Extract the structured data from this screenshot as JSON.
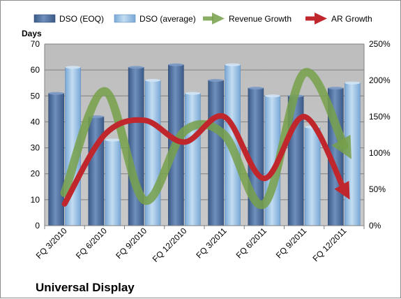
{
  "chart_data": {
    "type": "bar",
    "title": "Universal Display",
    "ylabel": "Days",
    "categories": [
      "FQ 3/2010",
      "FQ 6/2010",
      "FQ 9/2010",
      "FQ 12/2010",
      "FQ 3/2011",
      "FQ 6/2011",
      "FQ 9/2011",
      "FQ 12/2011"
    ],
    "ylim": [
      0,
      70
    ],
    "yticks": [
      0,
      10,
      20,
      30,
      40,
      50,
      60,
      70
    ],
    "y2lim": [
      0,
      250
    ],
    "y2ticks": [
      "0%",
      "50%",
      "100%",
      "150%",
      "200%",
      "250%"
    ],
    "y2values": [
      0,
      50,
      100,
      150,
      200,
      250
    ],
    "legend_position": "top",
    "plot_background": "#c0c0c0",
    "series": [
      {
        "name": "DSO (EOQ)",
        "type": "bar",
        "axis": "left",
        "color": "#4f6d9a",
        "values": [
          51,
          42,
          61,
          62,
          56,
          53,
          50,
          53
        ]
      },
      {
        "name": "DSO (average)",
        "type": "bar",
        "axis": "left",
        "color": "#9cc3e6",
        "values": [
          61,
          33,
          56,
          51,
          62,
          50,
          38,
          55
        ]
      },
      {
        "name": "Revenue Growth",
        "type": "line",
        "axis": "right",
        "color": "#77a04a",
        "values_percent": [
          45,
          185,
          35,
          130,
          125,
          30,
          210,
          110
        ]
      },
      {
        "name": "AR Growth",
        "type": "line",
        "axis": "right",
        "color": "#c0272d",
        "values_percent": [
          30,
          125,
          145,
          115,
          150,
          65,
          150,
          50
        ]
      }
    ]
  }
}
